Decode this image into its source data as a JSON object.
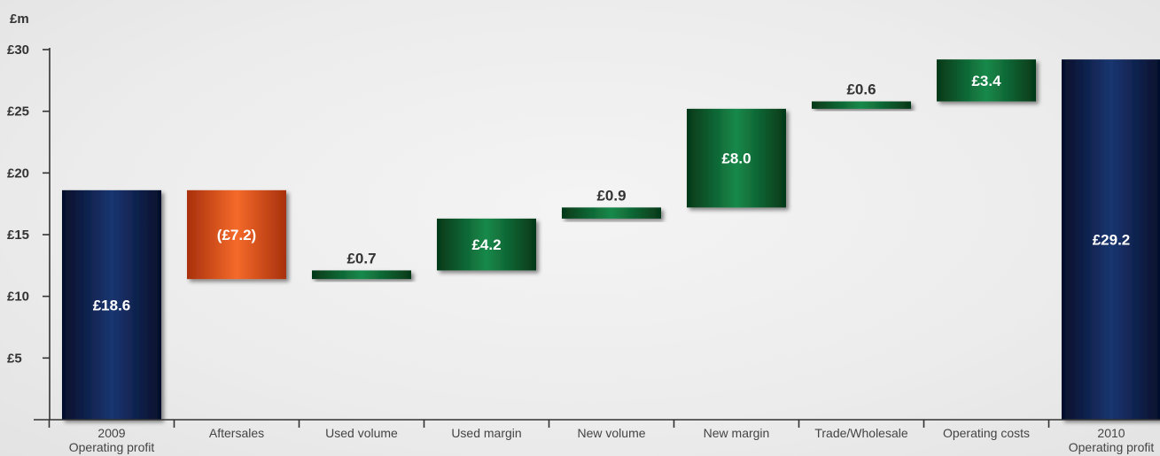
{
  "chart_data": {
    "type": "bar",
    "subtype": "waterfall",
    "unit_label": "£m",
    "ylim": [
      0,
      30
    ],
    "y_ticks": [
      5,
      10,
      15,
      20,
      25,
      30
    ],
    "y_tick_labels": [
      "£5",
      "£10",
      "£15",
      "£20",
      "£25",
      "£30"
    ],
    "grid": false,
    "bars": [
      {
        "category": [
          "2009",
          "Operating profit"
        ],
        "start": 0,
        "end": 18.6,
        "label": "£18.6",
        "kind": "total"
      },
      {
        "category": [
          "Aftersales"
        ],
        "start": 18.6,
        "end": 11.4,
        "label": "(£7.2)",
        "kind": "decrease"
      },
      {
        "category": [
          "Used volume"
        ],
        "start": 11.4,
        "end": 12.1,
        "label": "£0.7",
        "kind": "increase"
      },
      {
        "category": [
          "Used margin"
        ],
        "start": 12.1,
        "end": 16.3,
        "label": "£4.2",
        "kind": "increase"
      },
      {
        "category": [
          "New volume"
        ],
        "start": 16.3,
        "end": 17.2,
        "label": "£0.9",
        "kind": "increase"
      },
      {
        "category": [
          "New margin"
        ],
        "start": 17.2,
        "end": 25.2,
        "label": "£8.0",
        "kind": "increase"
      },
      {
        "category": [
          "Trade/Wholesale"
        ],
        "start": 25.2,
        "end": 25.8,
        "label": "£0.6",
        "kind": "increase"
      },
      {
        "category": [
          "Operating costs"
        ],
        "start": 25.8,
        "end": 29.2,
        "label": "£3.4",
        "kind": "increase"
      },
      {
        "category": [
          "2010",
          "Operating profit"
        ],
        "start": 0,
        "end": 29.2,
        "label": "£29.2",
        "kind": "total"
      }
    ],
    "colors": {
      "total": "#0c2050",
      "increase": "#0d6a34",
      "decrease": "#e2521e"
    }
  }
}
